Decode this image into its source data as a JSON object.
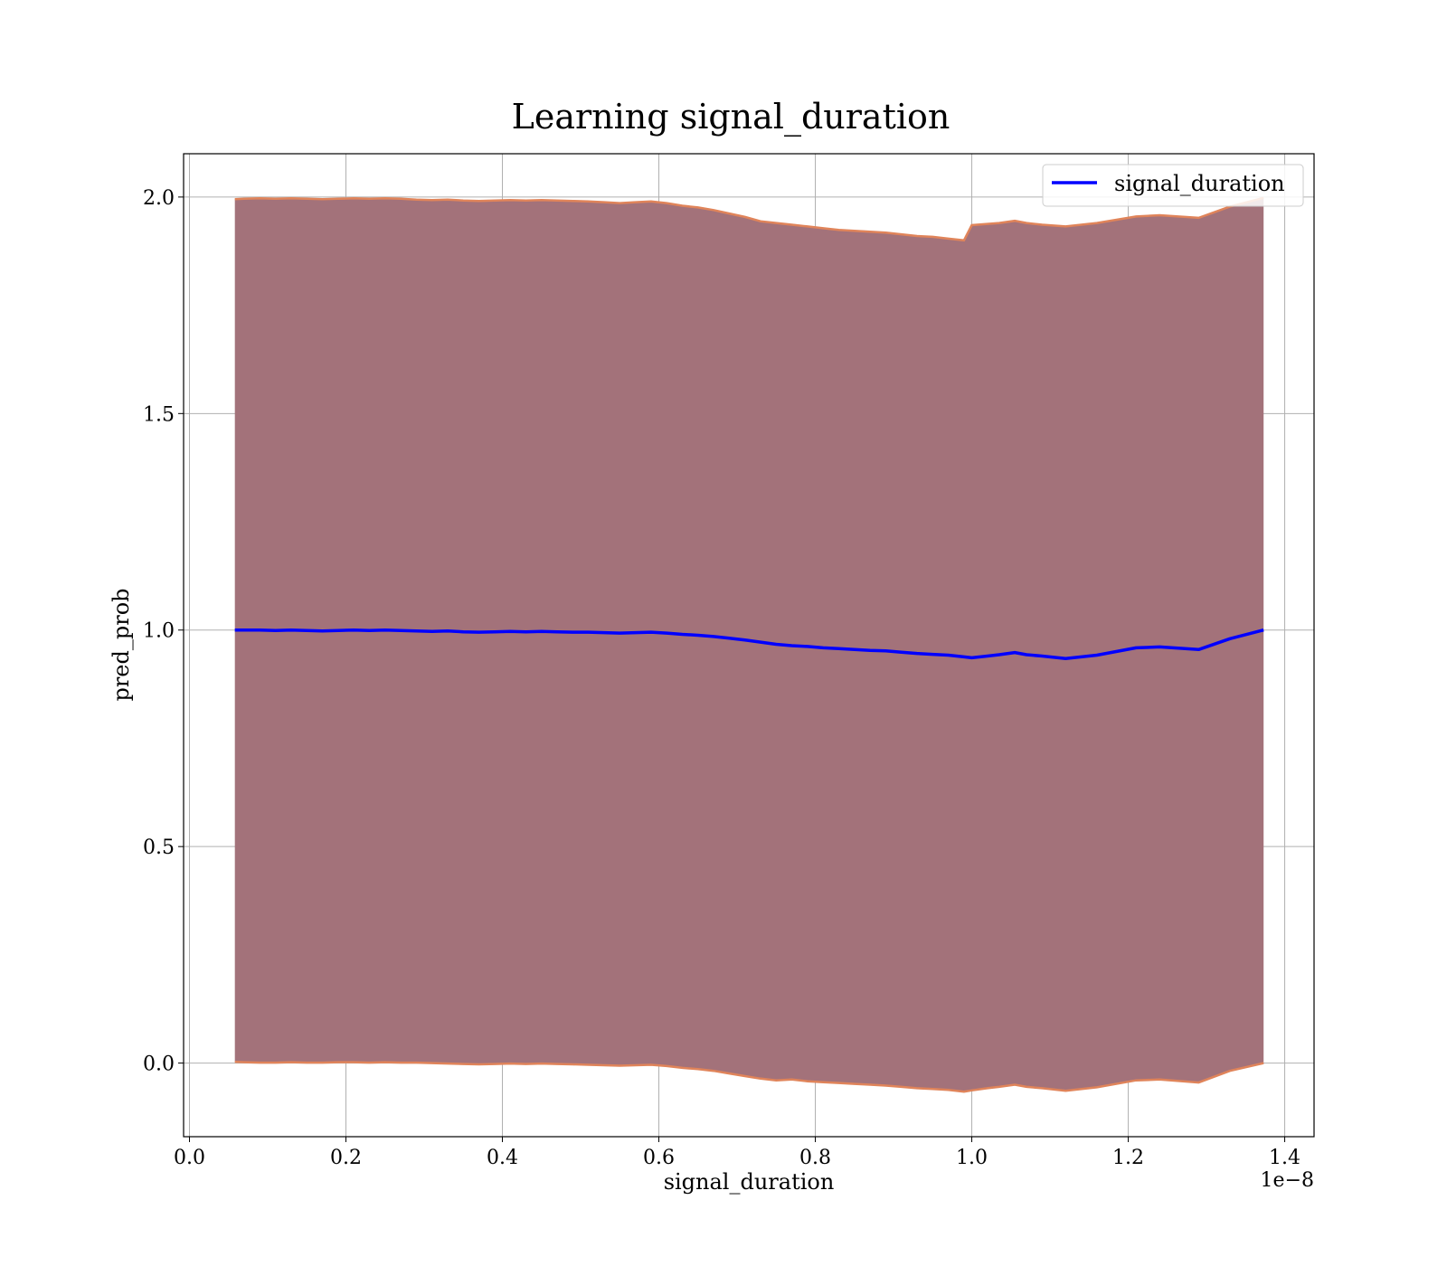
{
  "chart_data": {
    "type": "line",
    "title": "Learning signal_duration",
    "xlabel": "signal_duration",
    "ylabel": "pred_prob",
    "x_offset_text": "1e−8",
    "xlim": [
      -0.0075,
      1.4375
    ],
    "ylim": [
      -0.17,
      2.1
    ],
    "xticks": [
      0.0,
      0.2,
      0.4,
      0.6,
      0.8,
      1.0,
      1.2,
      1.4
    ],
    "xtick_labels": [
      "0.0",
      "0.2",
      "0.4",
      "0.6",
      "0.8",
      "1.0",
      "1.2",
      "1.4"
    ],
    "yticks": [
      0.0,
      0.5,
      1.0,
      1.5,
      2.0
    ],
    "ytick_labels": [
      "0.0",
      "0.5",
      "1.0",
      "1.5",
      "2.0"
    ],
    "grid": true,
    "legend_position": "top-right",
    "colors": {
      "line": "#0000ff",
      "band_fill": "#a3727a",
      "band_edge": "#e0845a",
      "grid": "#b0b0b0"
    },
    "series": [
      {
        "name": "signal_duration",
        "x": [
          0.058,
          0.07,
          0.09,
          0.11,
          0.13,
          0.15,
          0.17,
          0.19,
          0.21,
          0.23,
          0.25,
          0.27,
          0.29,
          0.31,
          0.33,
          0.35,
          0.37,
          0.39,
          0.41,
          0.43,
          0.45,
          0.47,
          0.49,
          0.51,
          0.53,
          0.55,
          0.57,
          0.59,
          0.61,
          0.63,
          0.65,
          0.67,
          0.69,
          0.71,
          0.73,
          0.75,
          0.77,
          0.79,
          0.81,
          0.83,
          0.85,
          0.87,
          0.89,
          0.91,
          0.93,
          0.95,
          0.97,
          0.99,
          1.0,
          1.02,
          1.035,
          1.055,
          1.07,
          1.09,
          1.12,
          1.16,
          1.21,
          1.24,
          1.29,
          1.33,
          1.373
        ],
        "values": [
          1.0,
          1.0,
          1.0,
          0.999,
          1.0,
          0.999,
          0.998,
          0.999,
          1.0,
          0.999,
          1.0,
          0.999,
          0.998,
          0.997,
          0.998,
          0.996,
          0.995,
          0.996,
          0.997,
          0.996,
          0.997,
          0.996,
          0.995,
          0.995,
          0.994,
          0.993,
          0.994,
          0.995,
          0.993,
          0.99,
          0.988,
          0.985,
          0.981,
          0.977,
          0.972,
          0.967,
          0.964,
          0.962,
          0.959,
          0.957,
          0.955,
          0.953,
          0.952,
          0.949,
          0.946,
          0.944,
          0.942,
          0.938,
          0.936,
          0.94,
          0.943,
          0.948,
          0.943,
          0.94,
          0.934,
          0.942,
          0.959,
          0.961,
          0.955,
          0.98,
          1.0
        ]
      }
    ],
    "band": {
      "upper": [
        1.995,
        1.996,
        1.997,
        1.996,
        1.997,
        1.996,
        1.995,
        1.996,
        1.997,
        1.996,
        1.997,
        1.996,
        1.994,
        1.993,
        1.994,
        1.992,
        1.991,
        1.992,
        1.993,
        1.992,
        1.993,
        1.992,
        1.991,
        1.99,
        1.988,
        1.986,
        1.988,
        1.99,
        1.986,
        1.98,
        1.976,
        1.97,
        1.962,
        1.954,
        1.944,
        1.94,
        1.936,
        1.932,
        1.928,
        1.924,
        1.922,
        1.92,
        1.918,
        1.914,
        1.91,
        1.908,
        1.904,
        1.9,
        1.935,
        1.938,
        1.94,
        1.945,
        1.94,
        1.936,
        1.932,
        1.94,
        1.955,
        1.958,
        1.952,
        1.978,
        1.998
      ],
      "lower": [
        0.003,
        0.002,
        0.001,
        0.001,
        0.002,
        0.001,
        0.001,
        0.002,
        0.002,
        0.001,
        0.002,
        0.001,
        0.001,
        0.0,
        -0.001,
        -0.002,
        -0.003,
        -0.002,
        -0.001,
        -0.002,
        -0.001,
        -0.002,
        -0.003,
        -0.004,
        -0.005,
        -0.006,
        -0.005,
        -0.004,
        -0.007,
        -0.011,
        -0.014,
        -0.018,
        -0.024,
        -0.03,
        -0.036,
        -0.04,
        -0.038,
        -0.042,
        -0.044,
        -0.046,
        -0.048,
        -0.05,
        -0.052,
        -0.055,
        -0.058,
        -0.06,
        -0.062,
        -0.066,
        -0.063,
        -0.058,
        -0.055,
        -0.05,
        -0.055,
        -0.058,
        -0.064,
        -0.056,
        -0.04,
        -0.038,
        -0.045,
        -0.018,
        0.0
      ]
    }
  }
}
